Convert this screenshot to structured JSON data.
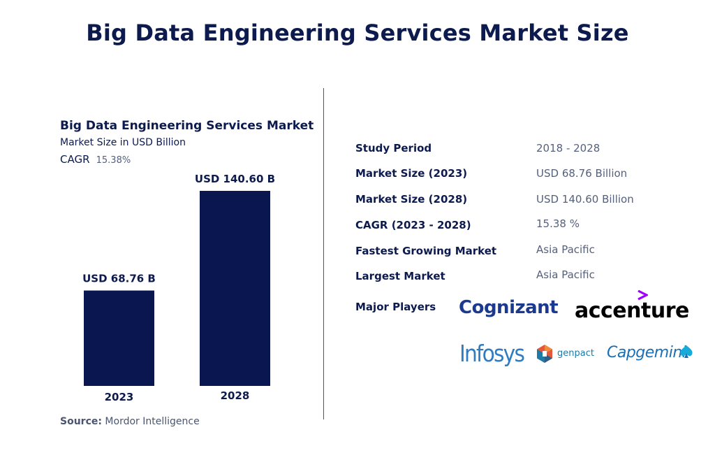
{
  "page_title": "Big Data Engineering Services Market Size",
  "chart_data": {
    "type": "bar",
    "title": "Big Data Engineering Services Market",
    "subtitle": "Market Size in USD Billion",
    "cagr_label": "CAGR",
    "cagr_value": "15.38%",
    "categories": [
      "2023",
      "2028"
    ],
    "values": [
      68.76,
      140.6
    ],
    "value_labels": [
      "USD 68.76 B",
      "USD 140.60 B"
    ],
    "bar_color": "#0a1650",
    "xlabel": "",
    "ylabel": "",
    "ylim": [
      0,
      140.6
    ],
    "grid": false,
    "legend": "none"
  },
  "source": {
    "label": "Source:",
    "text": "Mordor Intelligence"
  },
  "market_info": [
    {
      "key": "Study Period",
      "value": "2018 - 2028"
    },
    {
      "key": "Market Size (2023)",
      "value": "USD 68.76 Billion"
    },
    {
      "key": "Market Size (2028)",
      "value": "USD 140.60 Billion"
    },
    {
      "key": "CAGR (2023 - 2028)",
      "value": "15.38 %"
    },
    {
      "key": "Fastest Growing Market",
      "value": "Asia Pacific"
    },
    {
      "key": "Largest Market",
      "value": "Asia Pacific"
    }
  ],
  "major_players": {
    "label": "Major Players",
    "logos": [
      "Cognizant",
      "accenture",
      "Infosys",
      "genpact",
      "Capgemini"
    ],
    "logo_icons": [
      "accenture-arrow-icon",
      "genpact-hexagon-icon",
      "capgemini-spade-icon"
    ]
  }
}
